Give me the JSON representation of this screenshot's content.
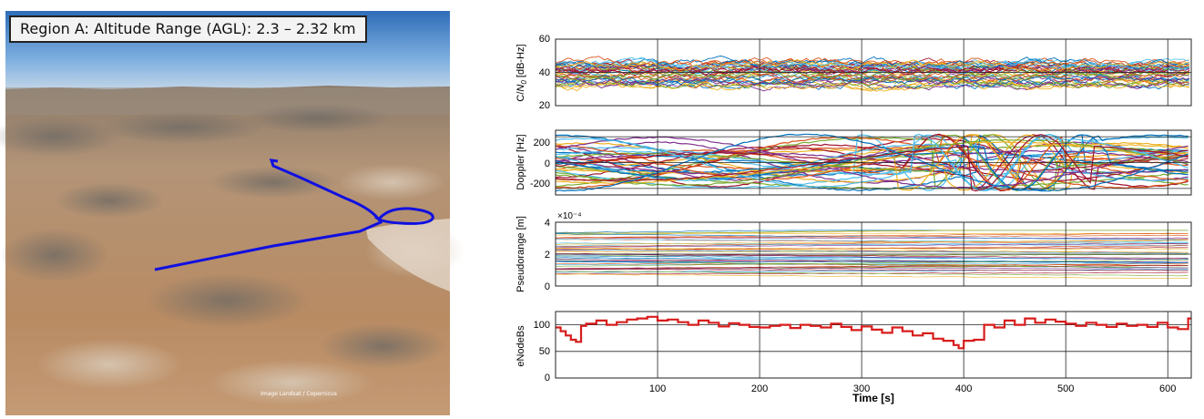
{
  "photo_panel": {
    "title": "Region A: Altitude Range (AGL): 2.3 – 2.32 km",
    "watermark": "Image Landsat / Copernicus",
    "trajectory_color": "#1010e0"
  },
  "chart_data": [
    {
      "type": "line",
      "ylabel": "C/N0 [dB-Hz]",
      "ylim": [
        20,
        60
      ],
      "xlim": [
        0,
        623
      ],
      "y_ticks": [
        "20",
        "40",
        "60"
      ],
      "grid": true,
      "series_description": "many satellite traces, values mostly 30–48 dB-Hz",
      "value_range": [
        28,
        55
      ]
    },
    {
      "type": "line",
      "ylabel": "Doppler [Hz]",
      "ylim": [
        -250,
        250
      ],
      "xlim": [
        0,
        623
      ],
      "y_ticks": [
        "-200",
        "0",
        "200"
      ],
      "grid": true,
      "series_description": "many traces bounded ±220 Hz, with sweeping transitions around t=300–430 s",
      "value_range": [
        -220,
        220
      ]
    },
    {
      "type": "line",
      "ylabel": "Pseudorange [m]",
      "ylim": [
        0,
        4
      ],
      "xlim": [
        0,
        623
      ],
      "y_ticks": [
        "0",
        "2",
        "4"
      ],
      "y_multiplier": "×10⁻⁴",
      "grid": true,
      "series_description": "many near-constant traces between 0.5 and 3.5 (×10⁻⁴)",
      "value_range": [
        0.5,
        3.5
      ]
    },
    {
      "type": "line",
      "ylabel": "eNodeBs",
      "xlabel": "Time [s]",
      "ylim": [
        0,
        125
      ],
      "xlim": [
        0,
        623
      ],
      "y_ticks": [
        "0",
        "50",
        "100"
      ],
      "x_ticks": [
        "100",
        "200",
        "300",
        "400",
        "500",
        "600"
      ],
      "grid": true,
      "series": [
        {
          "color": "#d81c1c",
          "x": [
            0,
            5,
            10,
            15,
            20,
            25,
            30,
            40,
            50,
            60,
            70,
            80,
            90,
            100,
            110,
            120,
            130,
            140,
            150,
            160,
            170,
            180,
            190,
            200,
            210,
            220,
            230,
            240,
            250,
            260,
            270,
            280,
            290,
            300,
            310,
            320,
            330,
            340,
            350,
            360,
            370,
            380,
            390,
            395,
            400,
            410,
            420,
            430,
            440,
            450,
            460,
            470,
            480,
            490,
            500,
            510,
            520,
            530,
            540,
            550,
            560,
            570,
            580,
            590,
            600,
            610,
            620
          ],
          "y": [
            95,
            88,
            80,
            72,
            68,
            98,
            102,
            108,
            100,
            105,
            110,
            112,
            115,
            108,
            110,
            105,
            100,
            108,
            104,
            97,
            103,
            100,
            96,
            95,
            98,
            100,
            94,
            100,
            98,
            95,
            102,
            96,
            90,
            97,
            91,
            85,
            95,
            88,
            80,
            84,
            74,
            70,
            62,
            56,
            70,
            72,
            100,
            95,
            108,
            100,
            112,
            104,
            110,
            106,
            102,
            98,
            104,
            100,
            96,
            102,
            98,
            100,
            96,
            104,
            95,
            92,
            112
          ]
        }
      ]
    }
  ]
}
